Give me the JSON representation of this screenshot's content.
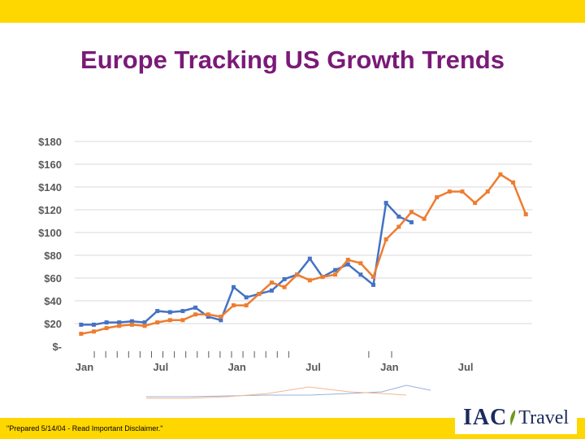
{
  "slide": {
    "title": "Europe Tracking US Growth Trends",
    "disclaimer": "\"Prepared 5/14/04 - Read Important Disclaimer.\"",
    "logo": {
      "brand": "IAC",
      "suffix": "Travel",
      "icon": "leaf-icon"
    }
  },
  "colors": {
    "band": "#ffd700",
    "title": "#7a1a78",
    "series_blue": "#4472c4",
    "series_orange": "#ed7d31"
  },
  "chart_data": {
    "type": "line",
    "title": "",
    "xlabel": "",
    "ylabel": "",
    "ylim": [
      0,
      180
    ],
    "y_ticks": [
      "$-",
      "$20",
      "$40",
      "$60",
      "$80",
      "$100",
      "$120",
      "$140",
      "$160",
      "$180"
    ],
    "x_tick_labels": [
      {
        "label": "Jan",
        "month_index": 0
      },
      {
        "label": "Jul",
        "month_index": 6
      },
      {
        "label": "Jan",
        "month_index": 12
      },
      {
        "label": "Jul",
        "month_index": 18
      },
      {
        "label": "Jan",
        "month_index": 24
      },
      {
        "label": "Jul",
        "month_index": 30
      }
    ],
    "months_total": 36,
    "grid": true,
    "legend": "none",
    "series": [
      {
        "color": "#4472c4",
        "x": [
          0,
          1,
          2,
          3,
          4,
          5,
          6,
          7,
          8,
          9,
          10,
          11,
          12,
          13,
          14,
          15,
          16,
          17,
          18,
          19,
          20,
          21,
          22,
          23,
          24,
          25,
          26
        ],
        "values": [
          19,
          19,
          21,
          21,
          22,
          21,
          31,
          30,
          31,
          34,
          26,
          23,
          52,
          43,
          46,
          49,
          59,
          63,
          77,
          61,
          67,
          72,
          63,
          54,
          126,
          114,
          109
        ]
      },
      {
        "color": "#ed7d31",
        "x": [
          0,
          1,
          2,
          3,
          4,
          5,
          6,
          7,
          8,
          9,
          10,
          11,
          12,
          13,
          14,
          15,
          16,
          17,
          18,
          19,
          20,
          21,
          22,
          23,
          24,
          25,
          26,
          27,
          28,
          29,
          30,
          31,
          32,
          33,
          34,
          35
        ],
        "values": [
          11,
          13,
          16,
          18,
          19,
          18,
          21,
          23,
          23,
          28,
          28,
          26,
          36,
          36,
          46,
          56,
          52,
          63,
          58,
          61,
          63,
          76,
          73,
          61,
          94,
          105,
          118,
          112,
          131,
          136,
          136,
          126,
          136,
          151,
          144,
          116
        ]
      }
    ]
  }
}
